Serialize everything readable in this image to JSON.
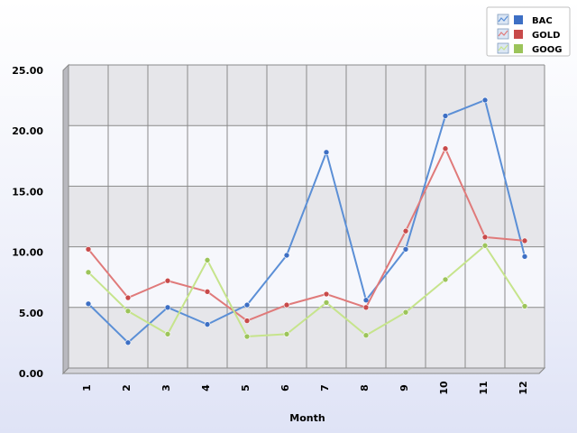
{
  "chart_data": {
    "type": "line",
    "title": "",
    "xlabel": "Month",
    "ylabel": "",
    "categories": [
      "1",
      "2",
      "3",
      "4",
      "5",
      "6",
      "7",
      "8",
      "9",
      "10",
      "11",
      "12"
    ],
    "ylim": [
      0,
      25
    ],
    "yticks": [
      "0.00",
      "5.00",
      "10.00",
      "15.00",
      "20.00",
      "25.00"
    ],
    "grid": true,
    "legend_position": "top-right",
    "series": [
      {
        "name": "BAC",
        "color": "#5b8fd6",
        "marker": "#3d6fc4",
        "values": [
          5.3,
          2.1,
          5.0,
          3.6,
          5.2,
          9.3,
          17.8,
          5.6,
          9.8,
          20.8,
          22.1,
          9.2
        ]
      },
      {
        "name": "GOLD",
        "color": "#e07a7a",
        "marker": "#c84a4a",
        "values": [
          9.8,
          5.8,
          7.2,
          6.3,
          3.9,
          5.2,
          6.1,
          5.0,
          11.3,
          18.1,
          10.8,
          10.5
        ]
      },
      {
        "name": "GOOG",
        "color": "#c6e48c",
        "marker": "#9cc45a",
        "values": [
          7.9,
          4.7,
          2.8,
          8.9,
          2.6,
          2.8,
          5.4,
          2.7,
          4.6,
          7.3,
          10.1,
          5.1
        ]
      }
    ]
  }
}
